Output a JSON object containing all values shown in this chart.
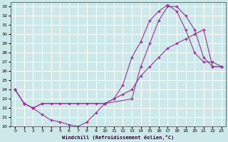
{
  "xlabel": "Windchill (Refroidissement éolien,°C)",
  "background_color": "#cce8e8",
  "line_color": "#993399",
  "grid_color": "#ffffff",
  "xlim": [
    -0.5,
    23.5
  ],
  "ylim": [
    20,
    33.5
  ],
  "xticks": [
    0,
    1,
    2,
    3,
    4,
    5,
    6,
    7,
    8,
    9,
    10,
    11,
    12,
    13,
    14,
    15,
    16,
    17,
    18,
    19,
    20,
    21,
    22,
    23
  ],
  "yticks": [
    20,
    21,
    22,
    23,
    24,
    25,
    26,
    27,
    28,
    29,
    30,
    31,
    32,
    33
  ],
  "line1_x": [
    0,
    1,
    2,
    3,
    4,
    5,
    6,
    7,
    8,
    9,
    10,
    11,
    12,
    13,
    14,
    15,
    16,
    17,
    18,
    19,
    20,
    21,
    22,
    23
  ],
  "line1_y": [
    24.0,
    22.5,
    22.0,
    21.3,
    20.7,
    20.5,
    20.2,
    20.0,
    20.5,
    21.5,
    22.5,
    23.0,
    24.5,
    27.5,
    29.2,
    31.5,
    32.5,
    33.2,
    32.5,
    30.5,
    28.0,
    27.0,
    27.0,
    26.5
  ],
  "line2_x": [
    0,
    1,
    2,
    3,
    4,
    5,
    6,
    7,
    8,
    9,
    10,
    11,
    12,
    13,
    14,
    15,
    16,
    17,
    18,
    19,
    20,
    21,
    22,
    23
  ],
  "line2_y": [
    24.0,
    22.5,
    22.0,
    22.5,
    22.5,
    22.5,
    22.5,
    22.5,
    22.5,
    22.5,
    22.5,
    23.0,
    23.5,
    24.0,
    25.5,
    26.5,
    27.5,
    28.5,
    29.0,
    29.5,
    30.0,
    30.5,
    26.5,
    26.5
  ],
  "line3_x": [
    0,
    1,
    2,
    3,
    10,
    13,
    14,
    15,
    16,
    17,
    18,
    19,
    20,
    21,
    22,
    23
  ],
  "line3_y": [
    24.0,
    22.5,
    22.0,
    22.5,
    22.5,
    23.0,
    26.5,
    29.0,
    31.5,
    33.0,
    33.0,
    32.0,
    30.5,
    27.5,
    26.5,
    26.5
  ]
}
